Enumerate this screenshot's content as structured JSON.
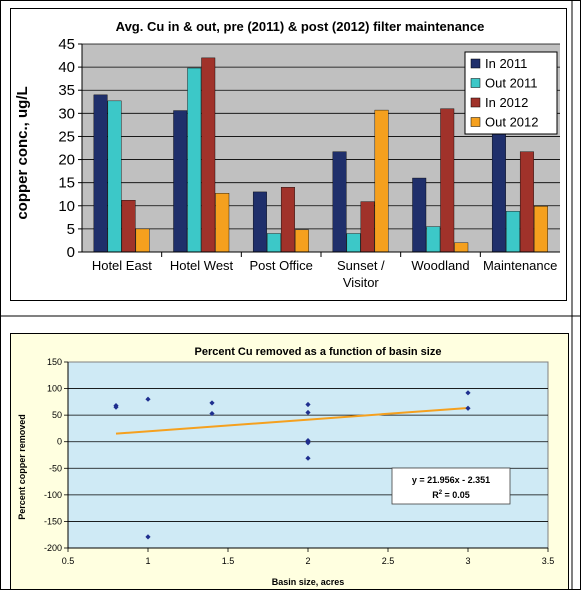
{
  "chart_data": [
    {
      "type": "bar",
      "title": "Avg. Cu in & out, pre (2011) & post (2012) filter maintenance",
      "xlabel": "",
      "ylabel": "copper conc., ug/L",
      "ylim": [
        0,
        45
      ],
      "yticks": [
        0,
        5,
        10,
        15,
        20,
        25,
        30,
        35,
        40,
        45
      ],
      "categories": [
        "Hotel East",
        "Hotel West",
        "Post Office",
        "Sunset / Visitor",
        "Woodland",
        "Maintenance"
      ],
      "category_lines": [
        [
          "Hotel East"
        ],
        [
          "Hotel West"
        ],
        [
          "Post Office"
        ],
        [
          "Sunset /",
          "Visitor"
        ],
        [
          "Woodland"
        ],
        [
          "Maintenance"
        ]
      ],
      "series": [
        {
          "name": "In 2011",
          "color": "#1f2f6b",
          "values": [
            34,
            30.6,
            13,
            21.7,
            16,
            29
          ]
        },
        {
          "name": "Out 2011",
          "color": "#3cc8c8",
          "values": [
            32.7,
            39.8,
            4,
            4,
            5.5,
            8.8
          ]
        },
        {
          "name": "In 2012",
          "color": "#a0322a",
          "values": [
            11.2,
            42,
            14,
            10.9,
            31,
            21.7
          ]
        },
        {
          "name": "Out 2012",
          "color": "#f5a01e",
          "values": [
            5,
            12.7,
            4.8,
            30.7,
            2,
            9.9
          ]
        }
      ],
      "grid": true,
      "legend": "top-right",
      "plot_background": "#c0c0c0"
    },
    {
      "type": "scatter",
      "title": "Percent Cu removed as a function of basin size",
      "xlabel": "Basin size, acres",
      "ylabel": "Percent copper removed",
      "xlim": [
        0.5,
        3.5
      ],
      "ylim": [
        -200,
        150
      ],
      "xticks": [
        "0.5",
        "1",
        "1.5",
        "2",
        "2.5",
        "3",
        "3.5"
      ],
      "yticks": [
        "150",
        "100",
        "50",
        "0",
        "-50",
        "-100",
        "-150",
        "-200"
      ],
      "points": [
        {
          "x": 0.8,
          "y": 68
        },
        {
          "x": 0.8,
          "y": 65
        },
        {
          "x": 1.0,
          "y": 80
        },
        {
          "x": 1.0,
          "y": -179
        },
        {
          "x": 1.4,
          "y": 73
        },
        {
          "x": 1.4,
          "y": 53
        },
        {
          "x": 2.0,
          "y": 70
        },
        {
          "x": 2.0,
          "y": 55
        },
        {
          "x": 2.0,
          "y": 2
        },
        {
          "x": 2.0,
          "y": -2
        },
        {
          "x": 2.0,
          "y": -31
        },
        {
          "x": 3.0,
          "y": 92
        },
        {
          "x": 3.0,
          "y": 63
        }
      ],
      "trendline": {
        "slope": 21.956,
        "intercept": -2.351,
        "x_range": [
          0.8,
          3.0
        ],
        "color": "#f5a01e"
      },
      "annotation": {
        "equation": "y = 21.956x - 2.351",
        "r2_prefix": "R",
        "r2_sup": "2",
        "r2_suffix": " = 0.05"
      },
      "grid": true,
      "marker_color": "#1f2f8f",
      "plot_background": "#cfeaf5"
    }
  ]
}
